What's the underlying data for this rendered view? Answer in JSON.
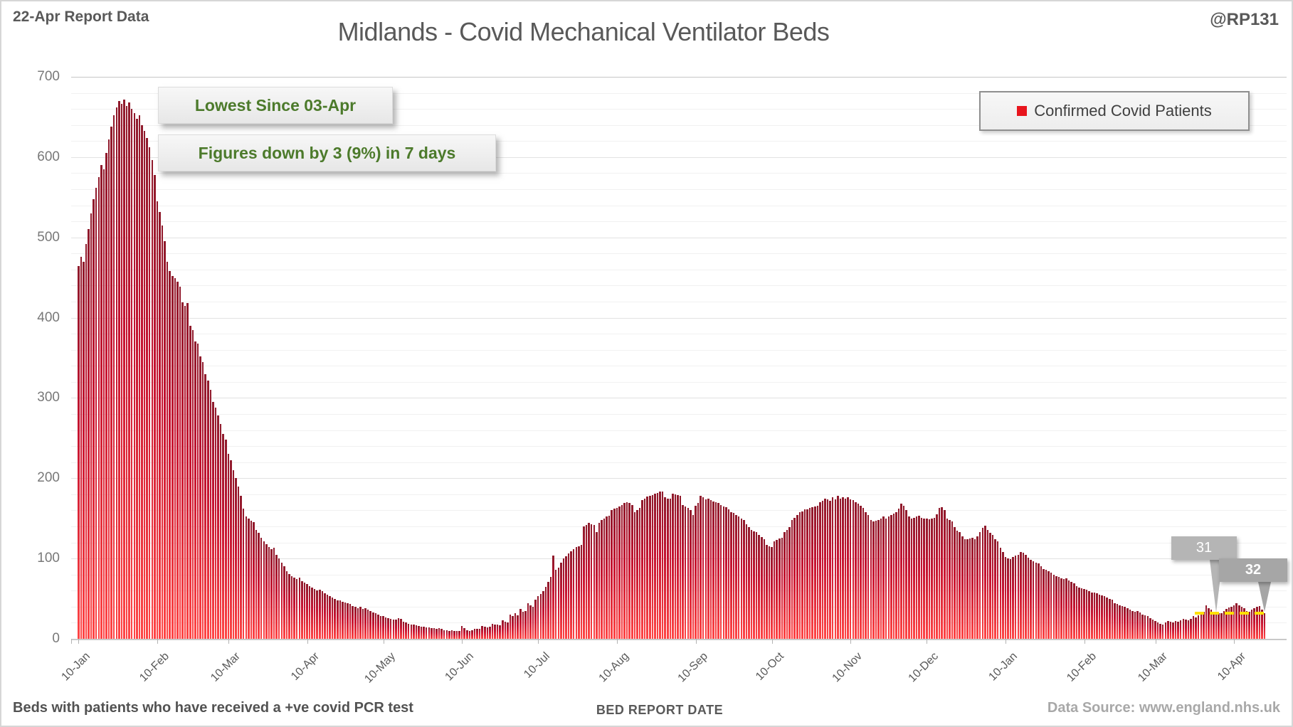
{
  "header": {
    "report_label": "22-Apr Report Data",
    "title": "Midlands - Covid Mechanical Ventilator Beds",
    "handle": "@RP131"
  },
  "legend": {
    "label": "Confirmed Covid Patients",
    "marker_color": "#e8151d"
  },
  "annotations": {
    "line1": "Lowest Since 03-Apr",
    "line2": "Figures down by 3 (9%) in 7 days",
    "text_color": "#4c7a2b"
  },
  "callouts": [
    {
      "label": "31",
      "index": 448,
      "value": 31
    },
    {
      "label": "32",
      "index": 467,
      "value": 32
    }
  ],
  "footer": {
    "note": "Beds with patients who have received a +ve covid PCR test",
    "axis_title": "BED REPORT DATE",
    "source": "Data Source: www.england.nhs.uk"
  },
  "colors": {
    "bar_top": "#8f1a2c",
    "bar_mid": "#c41230",
    "bar_bottom": "#ff4545",
    "annotation_green": "#4c7a2b",
    "callout_gray": "#a6a6a6",
    "reference_yellow": "#ffe100",
    "legend_red": "#e8151d",
    "text_gray": "#595959"
  },
  "chart_data": {
    "type": "bar",
    "title": "Midlands - Covid Mechanical Ventilator Beds",
    "series_name": "Confirmed Covid Patients",
    "xlabel": "BED REPORT DATE",
    "ylabel": "",
    "ylim": [
      0,
      700
    ],
    "y_ticks": [
      0,
      100,
      200,
      300,
      400,
      500,
      600,
      700
    ],
    "y_minor_step": 20,
    "grid": "on",
    "legend_position": "top-right",
    "x_ticks": [
      {
        "label": "10-Jan",
        "index": 0
      },
      {
        "label": "10-Feb",
        "index": 31
      },
      {
        "label": "10-Mar",
        "index": 59
      },
      {
        "label": "10-Apr",
        "index": 90
      },
      {
        "label": "10-May",
        "index": 120
      },
      {
        "label": "10-Jun",
        "index": 151
      },
      {
        "label": "10-Jul",
        "index": 181
      },
      {
        "label": "10-Aug",
        "index": 212
      },
      {
        "label": "10-Sep",
        "index": 243
      },
      {
        "label": "10-Oct",
        "index": 273
      },
      {
        "label": "10-Nov",
        "index": 304
      },
      {
        "label": "10-Dec",
        "index": 334
      },
      {
        "label": "10-Jan",
        "index": 365
      },
      {
        "label": "10-Feb",
        "index": 396
      },
      {
        "label": "10-Mar",
        "index": 424
      },
      {
        "label": "10-Apr",
        "index": 455
      }
    ],
    "reference_line": {
      "value": 32,
      "from_index": 440,
      "to_index": 467
    },
    "values": [
      464,
      476,
      470,
      492,
      510,
      530,
      548,
      562,
      575,
      590,
      585,
      605,
      622,
      638,
      652,
      662,
      670,
      666,
      672,
      664,
      668,
      660,
      655,
      648,
      652,
      640,
      633,
      624,
      612,
      596,
      578,
      545,
      532,
      515,
      495,
      470,
      458,
      452,
      449,
      445,
      439,
      419,
      415,
      418,
      390,
      385,
      370,
      368,
      352,
      345,
      330,
      322,
      310,
      295,
      288,
      278,
      268,
      255,
      248,
      230,
      222,
      210,
      200,
      190,
      178,
      162,
      152,
      150,
      147,
      145,
      136,
      132,
      126,
      121,
      118,
      114,
      112,
      113,
      105,
      100,
      95,
      90,
      84,
      81,
      78,
      76,
      74,
      76,
      72,
      70,
      68,
      66,
      64,
      62,
      60,
      61,
      59,
      57,
      55,
      53,
      51,
      50,
      48,
      48,
      46,
      45,
      44,
      43,
      41,
      40,
      38,
      40,
      37,
      38,
      36,
      35,
      33,
      32,
      30,
      28,
      28,
      27,
      26,
      25,
      24,
      24,
      26,
      25,
      21,
      20,
      19,
      18,
      18,
      17,
      16,
      15,
      15,
      14,
      14,
      13,
      13,
      12,
      13,
      12,
      11,
      11,
      10,
      11,
      10,
      10,
      10,
      16,
      13,
      11,
      10,
      11,
      12,
      12,
      12,
      16,
      15,
      14,
      15,
      19,
      18,
      18,
      17,
      23,
      21,
      20,
      30,
      28,
      32,
      29,
      37,
      34,
      35,
      44,
      42,
      40,
      49,
      53,
      56,
      59,
      65,
      71,
      77,
      104,
      86,
      89,
      95,
      100,
      103,
      106,
      109,
      112,
      114,
      115,
      117,
      140,
      142,
      144,
      143,
      142,
      133,
      144,
      148,
      150,
      152,
      153,
      160,
      162,
      163,
      165,
      167,
      169,
      170,
      169,
      167,
      158,
      160,
      163,
      173,
      175,
      177,
      178,
      179,
      181,
      182,
      183,
      183,
      176,
      175,
      175,
      181,
      180,
      179,
      178,
      167,
      165,
      163,
      160,
      154,
      166,
      169,
      178,
      176,
      174,
      175,
      173,
      171,
      170,
      169,
      167,
      165,
      164,
      161,
      158,
      157,
      154,
      152,
      150,
      148,
      143,
      139,
      136,
      134,
      133,
      129,
      127,
      124,
      117,
      115,
      114,
      121,
      123,
      125,
      126,
      133,
      136,
      139,
      148,
      151,
      154,
      158,
      159,
      161,
      161,
      163,
      164,
      165,
      166,
      170,
      172,
      175,
      174,
      172,
      176,
      174,
      178,
      175,
      176,
      175,
      176,
      174,
      173,
      170,
      168,
      166,
      163,
      158,
      154,
      148,
      146,
      147,
      148,
      150,
      152,
      150,
      152,
      154,
      156,
      158,
      162,
      168,
      166,
      160,
      152,
      150,
      151,
      152,
      153,
      151,
      150,
      150,
      149,
      150,
      151,
      155,
      163,
      164,
      160,
      150,
      148,
      146,
      139,
      135,
      133,
      128,
      124,
      124,
      125,
      126,
      124,
      128,
      133,
      138,
      141,
      136,
      132,
      129,
      124,
      121,
      113,
      108,
      102,
      100,
      99,
      102,
      104,
      105,
      108,
      107,
      105,
      101,
      98,
      97,
      95,
      94,
      90,
      87,
      86,
      84,
      82,
      80,
      78,
      77,
      75,
      74,
      75,
      73,
      71,
      69,
      66,
      64,
      63,
      62,
      61,
      59,
      58,
      58,
      57,
      55,
      54,
      53,
      51,
      50,
      49,
      44,
      43,
      42,
      41,
      40,
      38,
      36,
      35,
      34,
      35,
      33,
      30,
      29,
      28,
      26,
      24,
      22,
      20,
      19,
      18,
      20,
      22,
      21,
      20,
      22,
      21,
      23,
      25,
      24,
      23,
      25,
      28,
      27,
      29,
      31,
      34,
      42,
      38,
      36,
      34,
      31,
      32,
      32,
      35,
      37,
      39,
      40,
      42,
      44,
      42,
      40,
      38,
      35,
      34,
      36,
      38,
      40,
      41,
      36,
      32
    ]
  }
}
